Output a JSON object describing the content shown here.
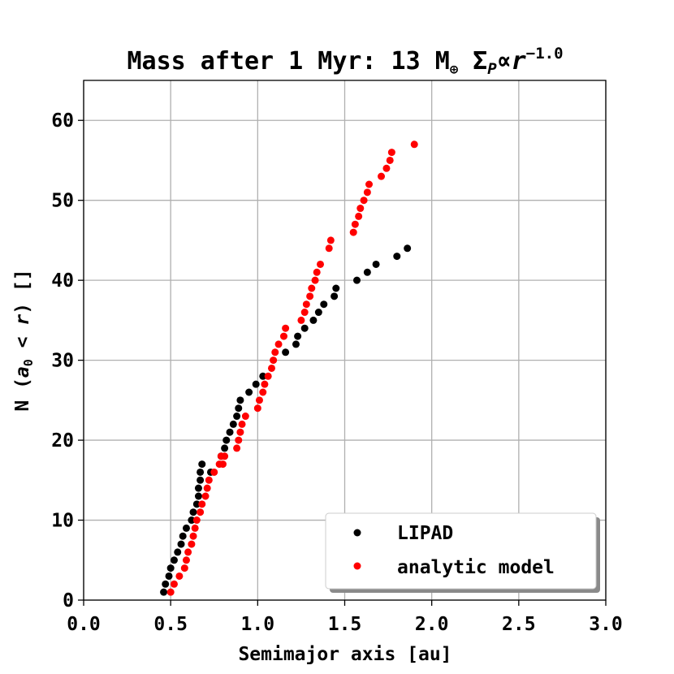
{
  "chart_data": {
    "type": "scatter",
    "title": {
      "main": "Mass after 1 Myr: 13 M",
      "earth_symbol": "⊕",
      "sigma": "Σ",
      "sigma_sub": "P",
      "propto": "∝",
      "r": "r",
      "exponent": "−1.0"
    },
    "xlabel": "Semimajor axis [au]",
    "ylabel": {
      "prefix": "N (",
      "a": "a",
      "sub0": "0",
      "lt": " < ",
      "r": "r",
      "suffix": ") []"
    },
    "xlim": [
      0.0,
      3.0
    ],
    "ylim": [
      0,
      65
    ],
    "xticks": [
      0.0,
      0.5,
      1.0,
      1.5,
      2.0,
      2.5,
      3.0
    ],
    "xtick_labels": [
      "0.0",
      "0.5",
      "1.0",
      "1.5",
      "2.0",
      "2.5",
      "3.0"
    ],
    "yticks": [
      0,
      10,
      20,
      30,
      40,
      50,
      60
    ],
    "ytick_labels": [
      "0",
      "10",
      "20",
      "30",
      "40",
      "50",
      "60"
    ],
    "grid": true,
    "legend_location": "lower-right",
    "series": [
      {
        "name": "LIPAD",
        "color": "#000000",
        "x": [
          0.46,
          0.47,
          0.49,
          0.5,
          0.52,
          0.54,
          0.56,
          0.57,
          0.59,
          0.62,
          0.63,
          0.65,
          0.66,
          0.66,
          0.67,
          0.67,
          0.68,
          0.73,
          0.79,
          0.81,
          0.82,
          0.84,
          0.86,
          0.88,
          0.89,
          0.9,
          0.95,
          0.99,
          1.03,
          1.16,
          1.22,
          1.23,
          1.27,
          1.32,
          1.35,
          1.38,
          1.44,
          1.45,
          1.57,
          1.63,
          1.68,
          1.8,
          1.86
        ],
        "y": [
          1,
          2,
          3,
          4,
          5,
          6,
          7,
          8,
          9,
          10,
          11,
          12,
          13,
          14,
          15,
          16,
          17,
          16,
          18,
          19,
          20,
          21,
          22,
          23,
          24,
          25,
          26,
          27,
          28,
          31,
          32,
          33,
          34,
          35,
          36,
          37,
          38,
          39,
          40,
          41,
          42,
          43,
          44
        ]
      },
      {
        "name": "analytic model",
        "color": "#ff0000",
        "x": [
          0.5,
          0.52,
          0.55,
          0.58,
          0.59,
          0.6,
          0.62,
          0.63,
          0.64,
          0.65,
          0.67,
          0.68,
          0.7,
          0.71,
          0.72,
          0.75,
          0.78,
          0.79,
          0.8,
          0.81,
          0.88,
          0.89,
          0.9,
          0.91,
          0.93,
          1.0,
          1.01,
          1.03,
          1.04,
          1.06,
          1.08,
          1.09,
          1.1,
          1.12,
          1.15,
          1.16,
          1.25,
          1.27,
          1.28,
          1.3,
          1.31,
          1.33,
          1.34,
          1.36,
          1.41,
          1.42,
          1.55,
          1.56,
          1.58,
          1.59,
          1.61,
          1.63,
          1.64,
          1.71,
          1.74,
          1.76,
          1.77,
          1.9
        ],
        "y": [
          1,
          2,
          3,
          4,
          5,
          6,
          7,
          8,
          9,
          10,
          11,
          12,
          13,
          14,
          15,
          16,
          17,
          18,
          17,
          18,
          19,
          20,
          21,
          22,
          23,
          24,
          25,
          26,
          27,
          28,
          29,
          30,
          31,
          32,
          33,
          34,
          35,
          36,
          37,
          38,
          39,
          40,
          41,
          42,
          44,
          45,
          46,
          47,
          48,
          49,
          50,
          51,
          52,
          53,
          54,
          55,
          56,
          57
        ]
      }
    ]
  }
}
